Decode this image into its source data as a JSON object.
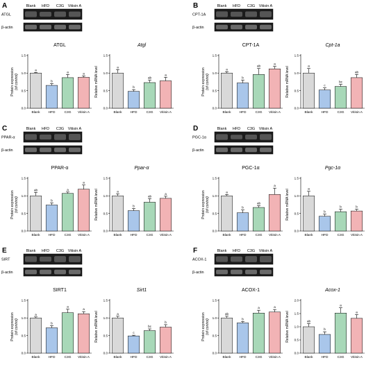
{
  "colors": {
    "Blank": "#d9d9d9",
    "HFD": "#a9c6ea",
    "C3G": "#a8d8b8",
    "Vitisin A": "#f2b3b5",
    "edge": "#000000"
  },
  "panels": [
    {
      "label": "A",
      "blot": {
        "columns": [
          "Blank",
          "HFD",
          "C3G",
          "Vitisin A"
        ],
        "rows": [
          "ATGL",
          "β-actin"
        ]
      },
      "charts": [
        {
          "title": "ATGL",
          "title_italic": false,
          "ylabel": [
            "Protein expression",
            "(of control)"
          ],
          "ylim": [
            0,
            1.5
          ],
          "yticks": [
            "0.0",
            "0.5",
            "1.0",
            "1.5"
          ],
          "categories": [
            "Blank",
            "HFD",
            "C3G",
            "Vitisin A"
          ],
          "values": [
            1.0,
            0.65,
            0.87,
            0.88
          ],
          "errors": [
            0.02,
            0.05,
            0.09,
            0.04
          ],
          "letters": [
            "a",
            "b",
            "a",
            "a"
          ]
        },
        {
          "title": "Atgl",
          "title_italic": true,
          "ylabel": [
            "Relative mRNA level"
          ],
          "ylim": [
            0,
            1.5
          ],
          "yticks": [
            "0.0",
            "0.5",
            "1.0",
            "1.5"
          ],
          "categories": [
            "Blank",
            "HFD",
            "C3G",
            "Vitisin A"
          ],
          "values": [
            1.0,
            0.48,
            0.73,
            0.78
          ],
          "errors": [
            0.1,
            0.05,
            0.07,
            0.1
          ],
          "letters": [
            "a",
            "b",
            "ab",
            "a"
          ]
        }
      ]
    },
    {
      "label": "B",
      "blot": {
        "columns": [
          "Blank",
          "HFD",
          "C3G",
          "Vitisin A"
        ],
        "rows": [
          "CPT-1A",
          "β-actin"
        ]
      },
      "charts": [
        {
          "title": "CPT-1A",
          "title_italic": false,
          "ylabel": [
            "Protein expression",
            "(of control)"
          ],
          "ylim": [
            0,
            1.5
          ],
          "yticks": [
            "0.0",
            "0.5",
            "1.0",
            "1.5"
          ],
          "categories": [
            "Blank",
            "HFD",
            "C3G",
            "Vitisin A"
          ],
          "values": [
            1.0,
            0.72,
            0.96,
            1.12
          ],
          "errors": [
            0.04,
            0.08,
            0.17,
            0.07
          ],
          "letters": [
            "a",
            "b",
            "ab",
            "a"
          ]
        },
        {
          "title": "Cpt-1a",
          "title_italic": true,
          "ylabel": [
            "Relative mRNA level"
          ],
          "ylim": [
            0,
            1.5
          ],
          "yticks": [
            "0.0",
            "0.5",
            "1.0",
            "1.5"
          ],
          "categories": [
            "Blank",
            "HFD",
            "C3G",
            "Vitisin A"
          ],
          "values": [
            1.0,
            0.52,
            0.62,
            0.87
          ],
          "errors": [
            0.13,
            0.06,
            0.06,
            0.09
          ],
          "letters": [
            "a",
            "c",
            "bc",
            "ab"
          ]
        }
      ]
    },
    {
      "label": "C",
      "blot": {
        "columns": [
          "Blank",
          "HFD",
          "C3G",
          "Vitisin A"
        ],
        "rows": [
          "PPAR-α",
          "β-actin"
        ]
      },
      "charts": [
        {
          "title": "PPAR-α",
          "title_italic": false,
          "ylabel": [
            "Protein expression",
            "(of control)"
          ],
          "ylim": [
            0,
            1.5
          ],
          "yticks": [
            "0.0",
            "0.5",
            "1.0",
            "1.5"
          ],
          "categories": [
            "Blank",
            "HFD",
            "C3G",
            "Vitisin A"
          ],
          "values": [
            1.0,
            0.74,
            1.07,
            1.19
          ],
          "errors": [
            0.1,
            0.06,
            0.04,
            0.12
          ],
          "letters": [
            "ab",
            "b",
            "a",
            "a"
          ]
        },
        {
          "title": "Ppar-α",
          "title_italic": true,
          "ylabel": [
            "Relative mRNA level"
          ],
          "ylim": [
            0,
            1.5
          ],
          "yticks": [
            "0.0",
            "0.5",
            "1.0",
            "1.5"
          ],
          "categories": [
            "Blank",
            "HFD",
            "C3G",
            "Vitisin A"
          ],
          "values": [
            1.0,
            0.58,
            0.82,
            0.93
          ],
          "errors": [
            0.06,
            0.06,
            0.1,
            0.06
          ],
          "letters": [
            "a",
            "b",
            "ab",
            "a"
          ]
        }
      ]
    },
    {
      "label": "D",
      "blot": {
        "columns": [
          "Blank",
          "HFD",
          "C3G",
          "Vitisin A"
        ],
        "rows": [
          "PGC-1α",
          "β-actin"
        ]
      },
      "charts": [
        {
          "title": "PGC-1α",
          "title_italic": false,
          "ylabel": [
            "Protein expression",
            "(of control)"
          ],
          "ylim": [
            0,
            1.5
          ],
          "yticks": [
            "0.0",
            "0.5",
            "1.0",
            "1.5"
          ],
          "categories": [
            "Blank",
            "HFD",
            "C3G",
            "Vitisin A"
          ],
          "values": [
            1.0,
            0.52,
            0.67,
            1.04
          ],
          "errors": [
            0.04,
            0.08,
            0.05,
            0.18
          ],
          "letters": [
            "a",
            "b",
            "ab",
            "a"
          ]
        },
        {
          "title": "Pgc-1α",
          "title_italic": true,
          "ylabel": [
            "Relative mRNA level"
          ],
          "ylim": [
            0,
            1.5
          ],
          "yticks": [
            "0.0",
            "0.5",
            "1.0",
            "1.5"
          ],
          "categories": [
            "Blank",
            "HFD",
            "C3G",
            "Vitisin A"
          ],
          "values": [
            1.0,
            0.42,
            0.55,
            0.57
          ],
          "errors": [
            0.13,
            0.06,
            0.07,
            0.05
          ],
          "letters": [
            "a",
            "b",
            "b",
            "b"
          ]
        }
      ]
    },
    {
      "label": "E",
      "blot": {
        "columns": [
          "Blank",
          "HFD",
          "C3G",
          "Vitisin A"
        ],
        "rows": [
          "SIRT",
          "β-actin"
        ]
      },
      "charts": [
        {
          "title": "SIRT1",
          "title_italic": false,
          "ylabel": [
            "Protein expression",
            "(of control)"
          ],
          "ylim": [
            0,
            1.5
          ],
          "yticks": [
            "0.0",
            "0.5",
            "1.0",
            "1.5"
          ],
          "categories": [
            "Blank",
            "HFD",
            "C3G",
            "Vitisin A"
          ],
          "values": [
            1.0,
            0.72,
            1.15,
            1.12
          ],
          "errors": [
            0.03,
            0.06,
            0.1,
            0.06
          ],
          "letters": [
            "a",
            "b",
            "a",
            "a"
          ]
        },
        {
          "title": "Sirt1",
          "title_italic": true,
          "ylabel": [
            "Relative mRNA level"
          ],
          "ylim": [
            0,
            1.5
          ],
          "yticks": [
            "0.0",
            "0.5",
            "1.0",
            "1.5"
          ],
          "categories": [
            "Blank",
            "HFD",
            "C3G",
            "Vitisin A"
          ],
          "values": [
            1.0,
            0.49,
            0.64,
            0.74
          ],
          "errors": [
            0.05,
            0.02,
            0.05,
            0.07
          ],
          "letters": [
            "a",
            "c",
            "bc",
            "b"
          ]
        }
      ]
    },
    {
      "label": "F",
      "blot": {
        "columns": [
          "Blank",
          "HFD",
          "C3G",
          "Vitisin A"
        ],
        "rows": [
          "ACOX-1",
          "β-actin"
        ]
      },
      "charts": [
        {
          "title": "ACOX-1",
          "title_italic": false,
          "ylabel": [
            "Protein expression",
            "(of control)"
          ],
          "ylim": [
            0,
            1.5
          ],
          "yticks": [
            "0.0",
            "0.5",
            "1.0",
            "1.5"
          ],
          "categories": [
            "Blank",
            "HFD",
            "C3G",
            "Vitisin A"
          ],
          "values": [
            1.0,
            0.86,
            1.14,
            1.17
          ],
          "errors": [
            0.05,
            0.04,
            0.08,
            0.07
          ],
          "letters": [
            "ab",
            "b",
            "a",
            "a"
          ]
        },
        {
          "title": "Acox-1",
          "title_italic": true,
          "ylabel": [
            "Relative mRNA level"
          ],
          "ylim": [
            0,
            2.0
          ],
          "yticks": [
            "0.0",
            "0.5",
            "1.0",
            "1.5",
            "2.0"
          ],
          "categories": [
            "Blank",
            "HFD",
            "C3G",
            "Vitisin A"
          ],
          "values": [
            1.0,
            0.71,
            1.52,
            1.32
          ],
          "errors": [
            0.12,
            0.1,
            0.2,
            0.14
          ],
          "letters": [
            "ab",
            "b",
            "a",
            "a"
          ]
        }
      ]
    }
  ],
  "chart_data": [
    {
      "type": "bar",
      "title": "ATGL",
      "ylabel": "Protein expression (of control)",
      "ylim": [
        0,
        1.5
      ],
      "categories": [
        "Blank",
        "HFD",
        "C3G",
        "Vitisin A"
      ],
      "values": [
        1.0,
        0.65,
        0.87,
        0.88
      ],
      "errors": [
        0.02,
        0.05,
        0.09,
        0.04
      ]
    },
    {
      "type": "bar",
      "title": "Atgl",
      "ylabel": "Relative mRNA level",
      "ylim": [
        0,
        1.5
      ],
      "categories": [
        "Blank",
        "HFD",
        "C3G",
        "Vitisin A"
      ],
      "values": [
        1.0,
        0.48,
        0.73,
        0.78
      ],
      "errors": [
        0.1,
        0.05,
        0.07,
        0.1
      ]
    },
    {
      "type": "bar",
      "title": "CPT-1A",
      "ylabel": "Protein expression (of control)",
      "ylim": [
        0,
        1.5
      ],
      "categories": [
        "Blank",
        "HFD",
        "C3G",
        "Vitisin A"
      ],
      "values": [
        1.0,
        0.72,
        0.96,
        1.12
      ],
      "errors": [
        0.04,
        0.08,
        0.17,
        0.07
      ]
    },
    {
      "type": "bar",
      "title": "Cpt-1a",
      "ylabel": "Relative mRNA level",
      "ylim": [
        0,
        1.5
      ],
      "categories": [
        "Blank",
        "HFD",
        "C3G",
        "Vitisin A"
      ],
      "values": [
        1.0,
        0.52,
        0.62,
        0.87
      ],
      "errors": [
        0.13,
        0.06,
        0.06,
        0.09
      ]
    },
    {
      "type": "bar",
      "title": "PPAR-α",
      "ylabel": "Protein expression (of control)",
      "ylim": [
        0,
        1.5
      ],
      "categories": [
        "Blank",
        "HFD",
        "C3G",
        "Vitisin A"
      ],
      "values": [
        1.0,
        0.74,
        1.07,
        1.19
      ],
      "errors": [
        0.1,
        0.06,
        0.04,
        0.12
      ]
    },
    {
      "type": "bar",
      "title": "Ppar-α",
      "ylabel": "Relative mRNA level",
      "ylim": [
        0,
        1.5
      ],
      "categories": [
        "Blank",
        "HFD",
        "C3G",
        "Vitisin A"
      ],
      "values": [
        1.0,
        0.58,
        0.82,
        0.93
      ],
      "errors": [
        0.06,
        0.06,
        0.1,
        0.06
      ]
    },
    {
      "type": "bar",
      "title": "PGC-1α",
      "ylabel": "Protein expression (of control)",
      "ylim": [
        0,
        1.5
      ],
      "categories": [
        "Blank",
        "HFD",
        "C3G",
        "Vitisin A"
      ],
      "values": [
        1.0,
        0.52,
        0.67,
        1.04
      ],
      "errors": [
        0.04,
        0.08,
        0.05,
        0.18
      ]
    },
    {
      "type": "bar",
      "title": "Pgc-1α",
      "ylabel": "Relative mRNA level",
      "ylim": [
        0,
        1.5
      ],
      "categories": [
        "Blank",
        "HFD",
        "C3G",
        "Vitisin A"
      ],
      "values": [
        1.0,
        0.42,
        0.55,
        0.57
      ],
      "errors": [
        0.13,
        0.06,
        0.07,
        0.05
      ]
    },
    {
      "type": "bar",
      "title": "SIRT1",
      "ylabel": "Protein expression (of control)",
      "ylim": [
        0,
        1.5
      ],
      "categories": [
        "Blank",
        "HFD",
        "C3G",
        "Vitisin A"
      ],
      "values": [
        1.0,
        0.72,
        1.15,
        1.12
      ],
      "errors": [
        0.03,
        0.06,
        0.1,
        0.06
      ]
    },
    {
      "type": "bar",
      "title": "Sirt1",
      "ylabel": "Relative mRNA level",
      "ylim": [
        0,
        1.5
      ],
      "categories": [
        "Blank",
        "HFD",
        "C3G",
        "Vitisin A"
      ],
      "values": [
        1.0,
        0.49,
        0.64,
        0.74
      ],
      "errors": [
        0.05,
        0.02,
        0.05,
        0.07
      ]
    },
    {
      "type": "bar",
      "title": "ACOX-1",
      "ylabel": "Protein expression (of control)",
      "ylim": [
        0,
        1.5
      ],
      "categories": [
        "Blank",
        "HFD",
        "C3G",
        "Vitisin A"
      ],
      "values": [
        1.0,
        0.86,
        1.14,
        1.17
      ],
      "errors": [
        0.05,
        0.04,
        0.08,
        0.07
      ]
    },
    {
      "type": "bar",
      "title": "Acox-1",
      "ylabel": "Relative mRNA level",
      "ylim": [
        0,
        2.0
      ],
      "categories": [
        "Blank",
        "HFD",
        "C3G",
        "Vitisin A"
      ],
      "values": [
        1.0,
        0.71,
        1.52,
        1.32
      ],
      "errors": [
        0.12,
        0.1,
        0.2,
        0.14
      ]
    }
  ]
}
